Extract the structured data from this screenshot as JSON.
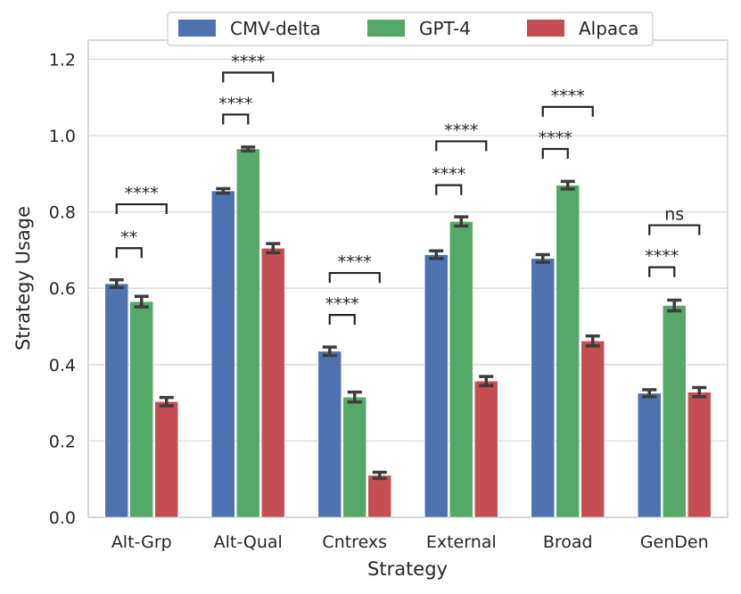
{
  "chart_data": {
    "type": "bar",
    "title": "",
    "xlabel": "Strategy",
    "ylabel": "Strategy Usage",
    "ylim": [
      0,
      1.25
    ],
    "yticks": [
      0.0,
      0.2,
      0.4,
      0.6,
      0.8,
      1.0,
      1.2
    ],
    "ytick_labels": [
      "0.0",
      "0.2",
      "0.4",
      "0.6",
      "0.8",
      "1.0",
      "1.2"
    ],
    "grid": true,
    "legend_position": "top-center",
    "categories": [
      "Alt-Grp",
      "Alt-Qual",
      "Cntrexs",
      "External",
      "Broad",
      "GenDen"
    ],
    "series": [
      {
        "name": "CMV-delta",
        "color": "#4c72b0",
        "values": [
          0.612,
          0.855,
          0.435,
          0.688,
          0.678,
          0.325
        ],
        "errors": [
          0.01,
          0.006,
          0.011,
          0.01,
          0.01,
          0.009
        ]
      },
      {
        "name": "GPT-4",
        "color": "#55a868",
        "values": [
          0.565,
          0.965,
          0.315,
          0.775,
          0.87,
          0.555
        ],
        "errors": [
          0.014,
          0.005,
          0.013,
          0.012,
          0.01,
          0.014
        ]
      },
      {
        "name": "Alpaca",
        "color": "#c44e52",
        "values": [
          0.303,
          0.705,
          0.11,
          0.357,
          0.462,
          0.328
        ],
        "errors": [
          0.011,
          0.012,
          0.008,
          0.012,
          0.013,
          0.012
        ]
      }
    ],
    "significance": [
      {
        "category": "Alt-Grp",
        "from": 0,
        "to": 1,
        "y": 0.705,
        "label": "**"
      },
      {
        "category": "Alt-Grp",
        "from": 0,
        "to": 2,
        "y": 0.82,
        "label": "****"
      },
      {
        "category": "Alt-Qual",
        "from": 0,
        "to": 1,
        "y": 1.055,
        "label": "****"
      },
      {
        "category": "Alt-Qual",
        "from": 0,
        "to": 2,
        "y": 1.165,
        "label": "****"
      },
      {
        "category": "Cntrexs",
        "from": 0,
        "to": 1,
        "y": 0.53,
        "label": "****"
      },
      {
        "category": "Cntrexs",
        "from": 0,
        "to": 2,
        "y": 0.64,
        "label": "****"
      },
      {
        "category": "External",
        "from": 0,
        "to": 1,
        "y": 0.87,
        "label": "****"
      },
      {
        "category": "External",
        "from": 0,
        "to": 2,
        "y": 0.985,
        "label": "****"
      },
      {
        "category": "Broad",
        "from": 0,
        "to": 1,
        "y": 0.965,
        "label": "****"
      },
      {
        "category": "Broad",
        "from": 0,
        "to": 2,
        "y": 1.075,
        "label": "****"
      },
      {
        "category": "GenDen",
        "from": 0,
        "to": 1,
        "y": 0.655,
        "label": "****"
      },
      {
        "category": "GenDen",
        "from": 0,
        "to": 2,
        "y": 0.765,
        "label": "ns"
      }
    ]
  }
}
